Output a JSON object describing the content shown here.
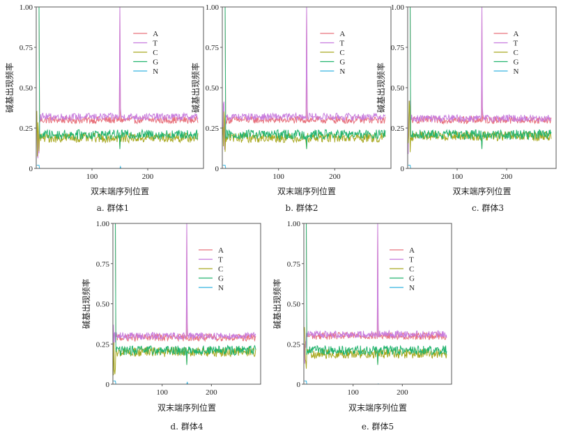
{
  "chart_data": [
    {
      "type": "line",
      "caption": "a. 群体1",
      "xlabel": "双末端序列位置",
      "ylabel": "碱基出现频率",
      "xticks": [
        100,
        200
      ],
      "yticks": [
        "0",
        "0.25",
        "0.50",
        "0.75",
        "1.00"
      ],
      "xlim": [
        0,
        300
      ],
      "ylim": [
        0,
        1
      ],
      "legend_position": "upper-right",
      "series": [
        {
          "name": "A",
          "color": "#e8707a",
          "baseline": 0.3
        },
        {
          "name": "T",
          "color": "#c77cde",
          "baseline": 0.32
        },
        {
          "name": "C",
          "color": "#a8a81e",
          "baseline": 0.19
        },
        {
          "name": "G",
          "color": "#21b36e",
          "baseline": 0.21
        },
        {
          "name": "N",
          "color": "#35b4e0",
          "baseline": 0.0
        }
      ]
    },
    {
      "type": "line",
      "caption": "b. 群体2",
      "xlabel": "双末端序列位置",
      "ylabel": "碱基出现频率",
      "xticks": [
        100,
        200
      ],
      "yticks": [
        "0",
        "0.25",
        "0.50",
        "0.75",
        "1.00"
      ],
      "xlim": [
        0,
        300
      ],
      "ylim": [
        0,
        1
      ],
      "legend_position": "upper-right",
      "series": [
        {
          "name": "A",
          "color": "#e8707a",
          "baseline": 0.3
        },
        {
          "name": "T",
          "color": "#c77cde",
          "baseline": 0.32
        },
        {
          "name": "C",
          "color": "#a8a81e",
          "baseline": 0.19
        },
        {
          "name": "G",
          "color": "#21b36e",
          "baseline": 0.21
        },
        {
          "name": "N",
          "color": "#35b4e0",
          "baseline": 0.0
        }
      ]
    },
    {
      "type": "line",
      "caption": "c. 群体3",
      "xlabel": "双末端序列位置",
      "ylabel": "碱基出现频率",
      "xticks": [
        100,
        200
      ],
      "yticks": [
        "0",
        "0.25",
        "0.50",
        "0.75",
        "1.00"
      ],
      "xlim": [
        0,
        300
      ],
      "ylim": [
        0,
        1
      ],
      "legend_position": "upper-right",
      "series": [
        {
          "name": "A",
          "color": "#e8707a",
          "baseline": 0.3
        },
        {
          "name": "T",
          "color": "#c77cde",
          "baseline": 0.31
        },
        {
          "name": "C",
          "color": "#a8a81e",
          "baseline": 0.2
        },
        {
          "name": "G",
          "color": "#21b36e",
          "baseline": 0.21
        },
        {
          "name": "N",
          "color": "#35b4e0",
          "baseline": 0.0
        }
      ]
    },
    {
      "type": "line",
      "caption": "d. 群体4",
      "xlabel": "双末端序列位置",
      "ylabel": "碱基出现频率",
      "xticks": [
        100,
        200
      ],
      "yticks": [
        "0",
        "0.25",
        "0.50",
        "0.75",
        "1.00"
      ],
      "xlim": [
        0,
        300
      ],
      "ylim": [
        0,
        1
      ],
      "legend_position": "upper-right",
      "series": [
        {
          "name": "A",
          "color": "#e8707a",
          "baseline": 0.29
        },
        {
          "name": "T",
          "color": "#c77cde",
          "baseline": 0.3
        },
        {
          "name": "C",
          "color": "#a8a81e",
          "baseline": 0.2
        },
        {
          "name": "G",
          "color": "#21b36e",
          "baseline": 0.21
        },
        {
          "name": "N",
          "color": "#35b4e0",
          "baseline": 0.0
        }
      ]
    },
    {
      "type": "line",
      "caption": "e. 群体5",
      "xlabel": "双末端序列位置",
      "ylabel": "碱基出现频率",
      "xticks": [
        100,
        200
      ],
      "yticks": [
        "0",
        "0.25",
        "0.50",
        "0.75",
        "1.00"
      ],
      "xlim": [
        0,
        300
      ],
      "ylim": [
        0,
        1
      ],
      "legend_position": "upper-right",
      "series": [
        {
          "name": "A",
          "color": "#e8707a",
          "baseline": 0.3
        },
        {
          "name": "T",
          "color": "#c77cde",
          "baseline": 0.31
        },
        {
          "name": "C",
          "color": "#a8a81e",
          "baseline": 0.19
        },
        {
          "name": "G",
          "color": "#21b36e",
          "baseline": 0.21
        },
        {
          "name": "N",
          "color": "#35b4e0",
          "baseline": 0.0
        }
      ]
    }
  ]
}
